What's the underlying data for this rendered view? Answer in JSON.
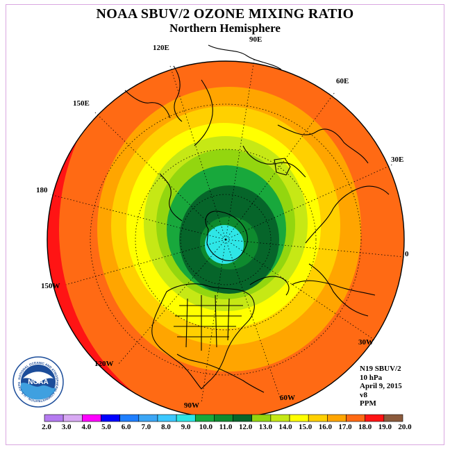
{
  "title": "NOAA SBUV/2 OZONE MIXING RATIO",
  "subtitle": "Northern Hemisphere",
  "longitude_labels": [
    "90E",
    "60E",
    "30E",
    "0",
    "30W",
    "60W",
    "90W",
    "120W",
    "150W",
    "180",
    "150E",
    "120E"
  ],
  "info": {
    "satellite": "N19 SBUV/2",
    "level": "10 hPa",
    "date": "April 9, 2015",
    "version": "v8",
    "units": "PPM"
  },
  "logo": {
    "center_text": "NOAA",
    "ring_text": "NATIONAL OCEANIC AND ATMOSPHERIC ADMINISTRATION · U.S. DEPARTMENT OF COMMERCE"
  },
  "colorbar": {
    "ticks": [
      "2.0",
      "3.0",
      "4.0",
      "5.0",
      "6.0",
      "7.0",
      "8.0",
      "9.0",
      "10.0",
      "11.0",
      "12.0",
      "13.0",
      "14.0",
      "15.0",
      "16.0",
      "17.0",
      "18.0",
      "19.0",
      "20.0"
    ],
    "colors": [
      "#b57bf0",
      "#d8a9f3",
      "#ff00ff",
      "#0000ff",
      "#1f7fff",
      "#3ca6f5",
      "#3cc8ff",
      "#2ee6e6",
      "#18a83c",
      "#0e8a2e",
      "#06652a",
      "#93d60f",
      "#c6e815",
      "#ffff00",
      "#ffd000",
      "#ffa500",
      "#ff6a14",
      "#ff1414",
      "#8b5a3c"
    ]
  }
}
